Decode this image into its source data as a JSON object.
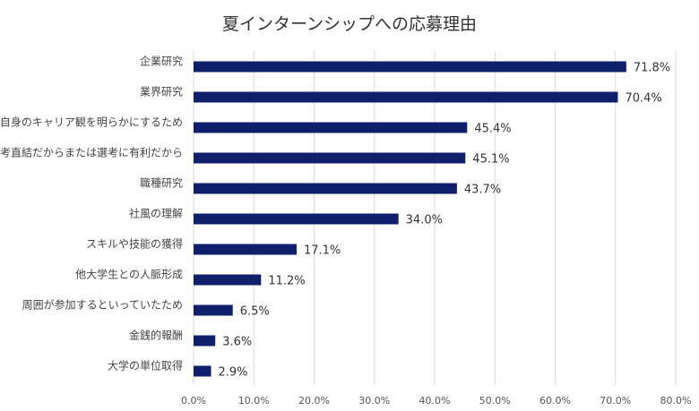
{
  "chart_data": {
    "type": "bar",
    "orientation": "horizontal",
    "title": "夏インターンシップへの応募理由",
    "categories": [
      "企業研究",
      "業界研究",
      "自分自身のキャリア観を明らかにするため",
      "選考直結だからまたは選考に有利だから",
      "職種研究",
      "社風の理解",
      "スキルや技能の獲得",
      "他大学生との人脈形成",
      "周囲が参加するといっていたため",
      "金銭的報酬",
      "大学の単位取得"
    ],
    "values": [
      71.8,
      70.4,
      45.4,
      45.1,
      43.7,
      34.0,
      17.1,
      11.2,
      6.5,
      3.6,
      2.9
    ],
    "value_labels": [
      "71.8%",
      "70.4%",
      "45.4%",
      "45.1%",
      "43.7%",
      "34.0%",
      "17.1%",
      "11.2%",
      "6.5%",
      "3.6%",
      "2.9%"
    ],
    "x_ticks": [
      "0.0%",
      "10.0%",
      "20.0%",
      "30.0%",
      "40.0%",
      "50.0%",
      "60.0%",
      "70.0%",
      "80.0%"
    ],
    "xlim": [
      0,
      80
    ],
    "grid": true,
    "bar_color": "#0f1f6b",
    "grid_color": "#d9d9d9"
  }
}
